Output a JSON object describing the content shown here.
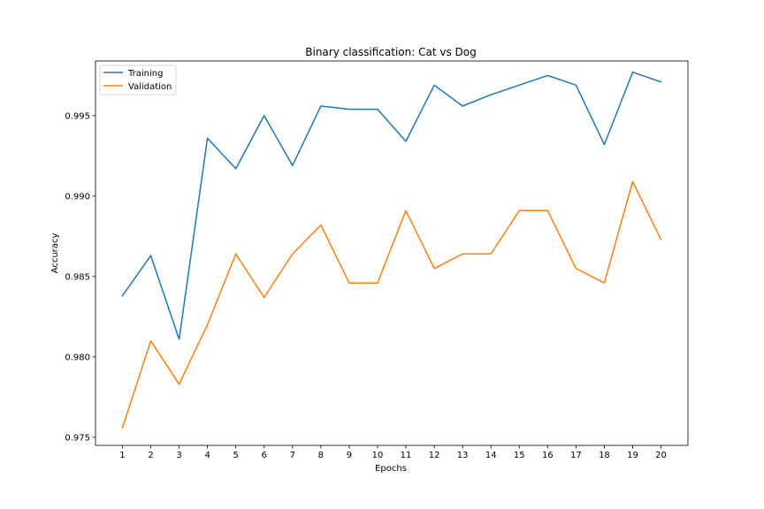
{
  "chart_data": {
    "type": "line",
    "title": "Binary classification: Cat vs Dog",
    "xlabel": "Epochs",
    "ylabel": "Accuracy",
    "x": [
      1,
      2,
      3,
      4,
      5,
      6,
      7,
      8,
      9,
      10,
      11,
      12,
      13,
      14,
      15,
      16,
      17,
      18,
      19,
      20
    ],
    "xlim": [
      0.05,
      20.95
    ],
    "ylim": [
      0.9745,
      0.9984
    ],
    "yticks": [
      0.975,
      0.98,
      0.985,
      0.99,
      0.995
    ],
    "ytick_labels": [
      "0.975",
      "0.980",
      "0.985",
      "0.990",
      "0.995"
    ],
    "grid": false,
    "legend_position": "top-left",
    "series": [
      {
        "name": "Training",
        "color": "#1f77b4",
        "values": [
          0.9838,
          0.9863,
          0.9811,
          0.9936,
          0.9917,
          0.995,
          0.9919,
          0.9956,
          0.9954,
          0.9954,
          0.9934,
          0.9969,
          0.9956,
          0.9963,
          0.9969,
          0.9975,
          0.9969,
          0.9932,
          0.9977,
          0.9971
        ]
      },
      {
        "name": "Validation",
        "color": "#ff7f0e",
        "values": [
          0.9756,
          0.981,
          0.9783,
          0.982,
          0.9864,
          0.9837,
          0.9864,
          0.9882,
          0.9846,
          0.9846,
          0.9891,
          0.9855,
          0.9864,
          0.9864,
          0.9891,
          0.9891,
          0.9855,
          0.9846,
          0.9909,
          0.9873
        ]
      }
    ]
  }
}
